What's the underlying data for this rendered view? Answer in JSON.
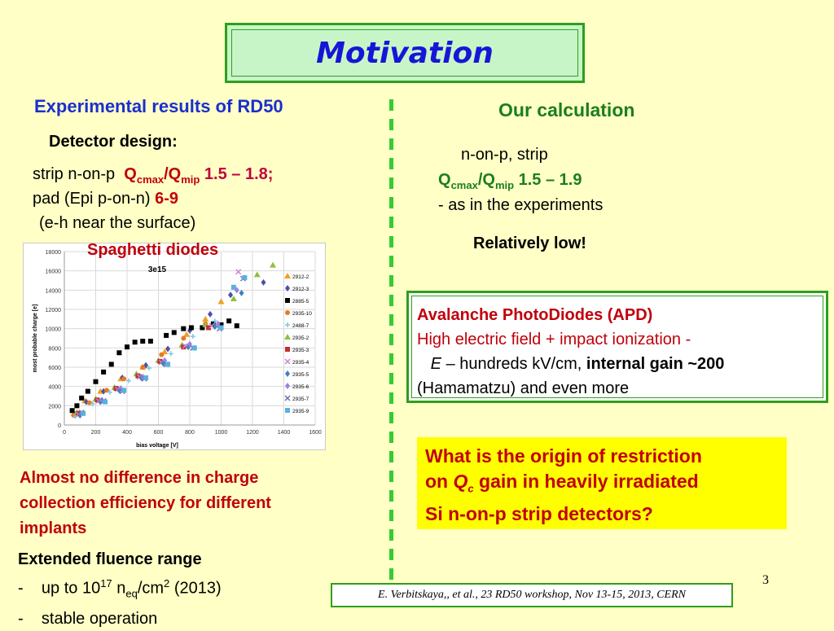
{
  "title": "Motivation",
  "left": {
    "heading": "Experimental results of RD50",
    "design_heading": "Detector design:",
    "strip_prefix": "strip n-on-p",
    "q": "Q",
    "cmax": "cmax",
    "slash": "/",
    "mip": "mip",
    "strip_value": "1.5 – 1.8;",
    "pad_prefix": "pad (Epi p-on-n)",
    "pad_value": "6-9",
    "eh_note": "(e-h near the surface)",
    "spaghetti": "Spaghetti diodes",
    "almost_lines": [
      "Almost no difference in charge",
      "collection efficiency for different",
      "implants"
    ],
    "extended_heading": "Extended fluence range",
    "ext_dash": "-",
    "up_to_prefix": "up to 10",
    "up_to_exp": "17",
    "n_text": "n",
    "eq_sub": "eq",
    "per_cm": "/cm",
    "cm_exp": "2",
    "year": "(2013)",
    "stable": "stable operation"
  },
  "right": {
    "heading": "Our calculation",
    "calc_line1": "n-on-p, strip",
    "q": "Q",
    "cmax": "cmax",
    "slash": "/",
    "mip": "mip",
    "calc_value": "1.5 – 1.9",
    "calc_line3": "- as in the experiments",
    "relatively_low": "Relatively low!"
  },
  "apd": {
    "title": "Avalanche PhotoDiodes (APD)",
    "line2": "High electric field + impact ionization -",
    "e_var": "E",
    "line3_mid": " – hundreds kV/cm, ",
    "line3_bold": "internal gain",
    "line3_end": " ~200",
    "line4": "(Hamamatzu) and even more"
  },
  "question": {
    "line1": "What is the origin of restriction",
    "line2_pre": "on ",
    "q_var": "Q",
    "c_sub": "c",
    "line2_post": " gain in heavily irradiated",
    "line3": "Si n-on-p strip detectors?"
  },
  "citation": "E. Verbitskaya,, et  al., 23 RD50 workshop, Nov 13-15, 2013, CERN",
  "page_number": "3",
  "colors": {
    "background": "#ffffc6",
    "title": "#1616d6",
    "red": "#c0000b",
    "green": "#2f9e1d",
    "blue_heading": "#1a2fce",
    "highlight": "#ffff00"
  },
  "chart_data": {
    "type": "scatter",
    "title": "3e15",
    "xlabel": "bias voltage [V]",
    "ylabel": "most probable charge [e]",
    "xlim": [
      0,
      1600
    ],
    "ylim": [
      0,
      18000
    ],
    "xticks": [
      0,
      200,
      400,
      600,
      800,
      1000,
      1200,
      1400,
      1600
    ],
    "yticks": [
      0,
      2000,
      4000,
      6000,
      8000,
      10000,
      12000,
      14000,
      16000,
      18000
    ],
    "grid": true,
    "legend_position": "right",
    "series": [
      {
        "name": "2912-2",
        "color": "#f0a020",
        "marker": "triangle",
        "x": [
          60,
          130,
          230,
          360,
          500,
          640,
          780,
          900,
          1000
        ],
        "y": [
          1200,
          2500,
          3500,
          4800,
          6000,
          7600,
          9400,
          11000,
          12800
        ]
      },
      {
        "name": "2912-3",
        "color": "#4a50a8",
        "marker": "diamond",
        "x": [
          70,
          140,
          250,
          370,
          520,
          660,
          800,
          930,
          1060,
          1270
        ],
        "y": [
          1100,
          2400,
          3500,
          4900,
          6200,
          7900,
          9800,
          11500,
          13500,
          14800
        ]
      },
      {
        "name": "2885-5",
        "color": "#000000",
        "marker": "square",
        "x": [
          50,
          80,
          110,
          150,
          200,
          250,
          300,
          350,
          400,
          450,
          500,
          550,
          650,
          700,
          760,
          810,
          880,
          950,
          1000,
          1050,
          1100
        ],
        "y": [
          1500,
          2000,
          2800,
          3500,
          4500,
          5500,
          6300,
          7500,
          8100,
          8600,
          8700,
          8700,
          9300,
          9600,
          10000,
          10100,
          10100,
          10500,
          10400,
          10800,
          10300
        ]
      },
      {
        "name": "2935-10",
        "color": "#e87a1f",
        "marker": "circle",
        "x": [
          60,
          160,
          270,
          380,
          500,
          620,
          760,
          900
        ],
        "y": [
          1000,
          2300,
          3600,
          4800,
          6000,
          7300,
          9000,
          10500
        ]
      },
      {
        "name": "2488-7",
        "color": "#7ec8e3",
        "marker": "cross",
        "x": [
          70,
          180,
          290,
          410,
          540,
          680,
          820,
          960
        ],
        "y": [
          900,
          2200,
          3400,
          4600,
          5900,
          7400,
          9200,
          10800
        ]
      },
      {
        "name": "2935-2",
        "color": "#8fbf3f",
        "marker": "triangle",
        "x": [
          80,
          200,
          320,
          460,
          600,
          750,
          900,
          1080,
          1230,
          1330
        ],
        "y": [
          1300,
          2700,
          3900,
          5300,
          6700,
          8300,
          10400,
          13100,
          15600,
          16600
        ]
      },
      {
        "name": "2935-3",
        "color": "#c03030",
        "marker": "square",
        "x": [
          90,
          210,
          330,
          470,
          610,
          760,
          920
        ],
        "y": [
          1200,
          2600,
          3800,
          5100,
          6600,
          8100,
          10100
        ]
      },
      {
        "name": "2935-4",
        "color": "#d080d0",
        "marker": "x",
        "x": [
          90,
          220,
          340,
          480,
          620,
          770,
          940,
          1110
        ],
        "y": [
          1100,
          2500,
          3700,
          5000,
          6500,
          8200,
          10300,
          15900
        ]
      },
      {
        "name": "2935-5",
        "color": "#4080c0",
        "marker": "diamond",
        "x": [
          100,
          230,
          350,
          490,
          630,
          790,
          960,
          1130
        ],
        "y": [
          1000,
          2400,
          3600,
          4900,
          6400,
          8100,
          10200,
          13700
        ]
      },
      {
        "name": "2935-6",
        "color": "#a080e0",
        "marker": "diamond",
        "x": [
          110,
          240,
          360,
          500,
          640,
          800,
          980,
          1100
        ],
        "y": [
          1200,
          2600,
          3800,
          5000,
          6700,
          8400,
          10500,
          14000
        ]
      },
      {
        "name": "2935-7",
        "color": "#7070a0",
        "marker": "x",
        "x": [
          110,
          250,
          370,
          510,
          650,
          820,
          990,
          1140
        ],
        "y": [
          1300,
          2500,
          3500,
          4800,
          6300,
          8000,
          10000,
          15200
        ]
      },
      {
        "name": "2935-9",
        "color": "#5ab0e0",
        "marker": "square",
        "x": [
          120,
          260,
          380,
          520,
          660,
          830,
          1000,
          1080,
          1150
        ],
        "y": [
          1200,
          2400,
          3600,
          4900,
          6300,
          8000,
          10100,
          14300,
          15300
        ]
      }
    ]
  }
}
